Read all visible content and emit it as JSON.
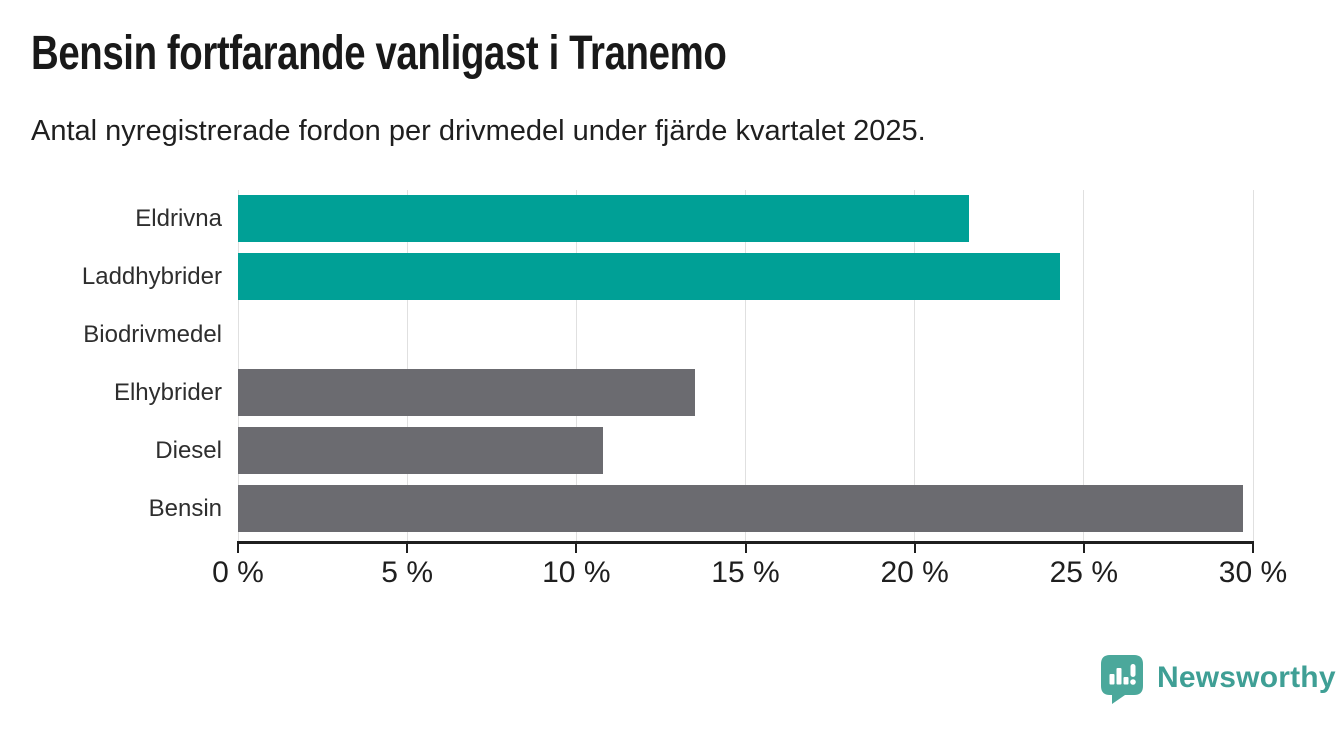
{
  "header": {
    "title": "Bensin fortfarande vanligast i Tranemo",
    "subtitle": "Antal nyregistrerade fordon per drivmedel under fjärde kvartalet 2025."
  },
  "chart_data": {
    "type": "bar",
    "orientation": "horizontal",
    "title": "Bensin fortfarande vanligast i Tranemo",
    "subtitle": "Antal nyregistrerade fordon per drivmedel under fjärde kvartalet 2025.",
    "categories": [
      "Eldrivna",
      "Laddhybrider",
      "Biodrivmedel",
      "Elhybrider",
      "Diesel",
      "Bensin"
    ],
    "values": [
      21.6,
      24.3,
      0,
      13.5,
      10.8,
      29.7
    ],
    "unit": "%",
    "xlabel": "",
    "ylabel": "",
    "xlim": [
      0,
      30
    ],
    "xticks": [
      0,
      5,
      10,
      15,
      20,
      25,
      30
    ],
    "xtick_labels": [
      "0 %",
      "5 %",
      "10 %",
      "15 %",
      "20 %",
      "25 %",
      "30 %"
    ],
    "bar_colors": [
      "#00a096",
      "#00a096",
      "#00a096",
      "#6b6b70",
      "#6b6b70",
      "#6b6b70"
    ],
    "grid": true,
    "legend": false
  },
  "colors": {
    "accent_teal": "#00a096",
    "neutral_gray": "#6b6b70",
    "gridline": "#e0e0e0",
    "axis": "#1f1f1f",
    "brand_teal": "#4ba89b",
    "brand_text_teal": "#3f9f95"
  },
  "footer": {
    "brand": "Newsworthy",
    "logo_icon": "newsworthy-bubble-bar-chart-icon"
  }
}
